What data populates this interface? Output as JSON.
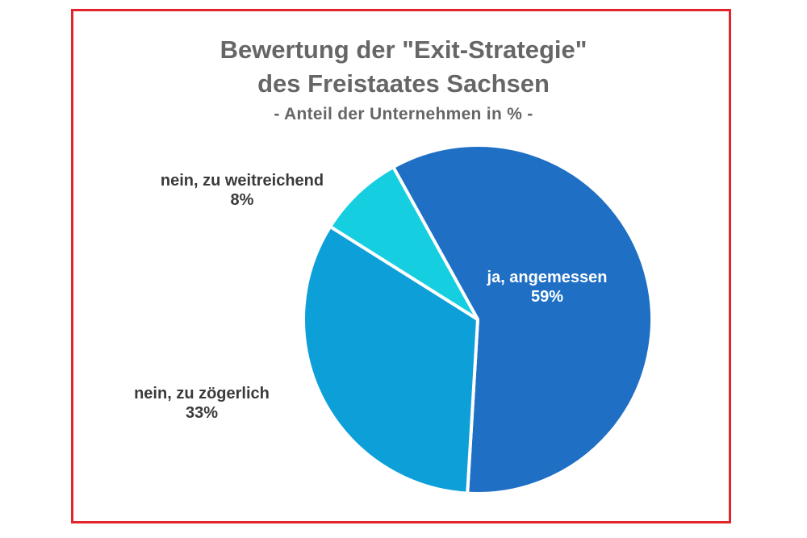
{
  "chart_data": {
    "type": "pie",
    "title": "Bewertung der \"Exit-Strategie\"",
    "title_line2": "des Freistaates Sachsen",
    "subtitle": "- Anteil der Unternehmen in % -",
    "slices": [
      {
        "label": "ja, angemessen",
        "value": 59,
        "display": "59%",
        "color": "#1f6fc4",
        "text_color": "#ffffff"
      },
      {
        "label": "nein, zu zögerlich",
        "value": 33,
        "display": "33%",
        "color": "#0d9fd8",
        "text_color": "#3a3a3a"
      },
      {
        "label": "nein, zu weitreichend",
        "value": 8,
        "display": "8%",
        "color": "#15cfe0",
        "text_color": "#3a3a3a"
      }
    ]
  },
  "colors": {
    "frame_border": "#e2252b",
    "title_text": "#666666"
  }
}
